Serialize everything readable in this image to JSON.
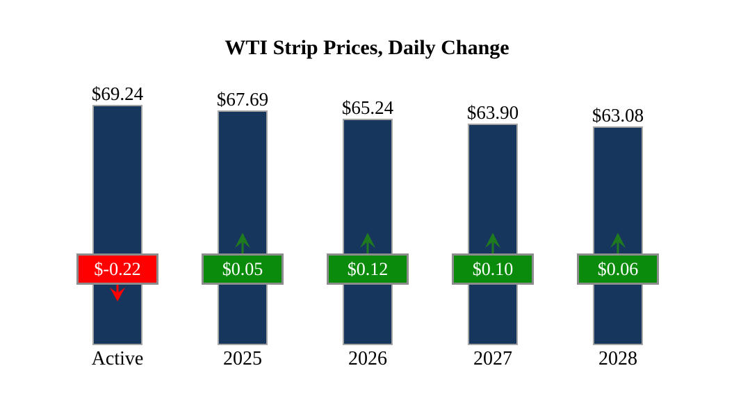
{
  "title": "WTI Strip Prices, Daily Change",
  "colors": {
    "bar": "#17365d",
    "bar_border": "#a6a6a6",
    "badge_positive": "#0b8b0b",
    "badge_negative": "#ff0000",
    "badge_border": "#8c8c8c",
    "badge_text": "#ffffff",
    "arrow_up": "#1f7a1f",
    "arrow_down": "#ff0000",
    "label_text": "#000000",
    "background": "#ffffff"
  },
  "chart_data": {
    "type": "bar",
    "title": "WTI Strip Prices, Daily Change",
    "categories": [
      "Active",
      "2025",
      "2026",
      "2027",
      "2028"
    ],
    "series": [
      {
        "name": "strip_price",
        "values": [
          69.24,
          67.69,
          65.24,
          63.9,
          63.08
        ],
        "labels": [
          "$69.24",
          "$67.69",
          "$65.24",
          "$63.90",
          "$63.08"
        ]
      },
      {
        "name": "daily_change",
        "values": [
          -0.22,
          0.05,
          0.12,
          0.1,
          0.06
        ],
        "labels": [
          "$-0.22",
          "$0.05",
          "$0.12",
          "$0.10",
          "$0.06"
        ]
      }
    ],
    "ylim": [
      0,
      70
    ],
    "grid": false,
    "legend": "none",
    "axes_shown": false
  }
}
